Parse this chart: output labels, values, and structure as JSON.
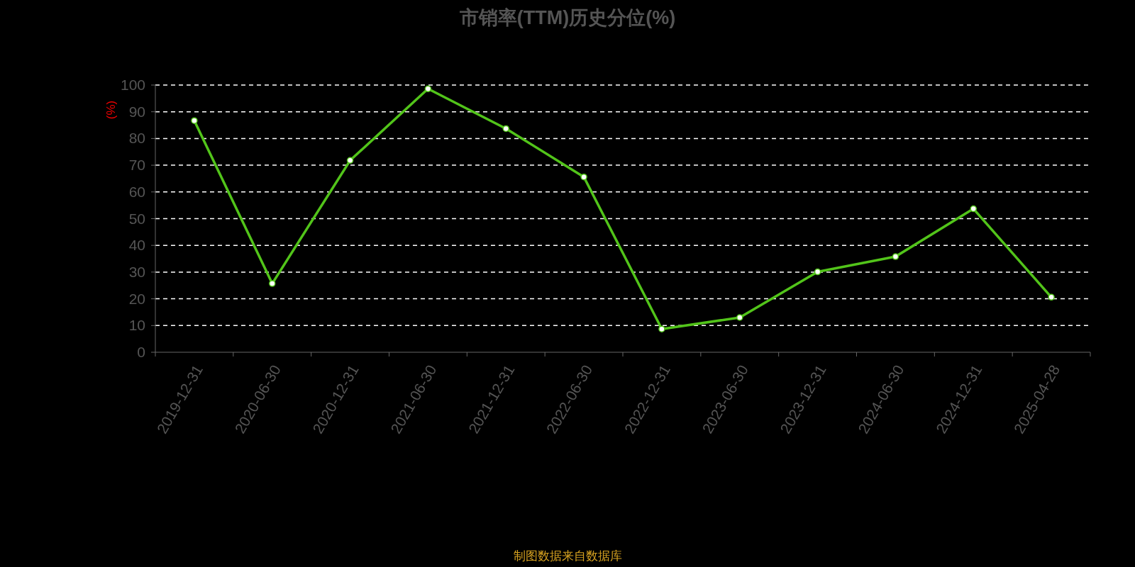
{
  "chart_data": {
    "type": "line",
    "title": "市销率(TTM)历史分位(%)",
    "ylabel": "(%)",
    "categories": [
      "2019-12-31",
      "2020-06-30",
      "2020-12-31",
      "2021-06-30",
      "2021-12-31",
      "2022-06-30",
      "2022-12-31",
      "2023-06-30",
      "2023-12-31",
      "2024-06-30",
      "2024-12-31",
      "2025-04-28"
    ],
    "series": [
      {
        "color": "#52c41a",
        "values": [
          86.7,
          25.7,
          71.8,
          98.6,
          83.7,
          65.6,
          8.7,
          13.0,
          30.1,
          35.8,
          53.7,
          20.6
        ]
      }
    ],
    "ylim": [
      0,
      100
    ],
    "yticks": [
      0,
      10,
      20,
      30,
      40,
      50,
      60,
      70,
      80,
      90,
      100
    ],
    "grid": "y",
    "marker": "circle",
    "line_style": "solid",
    "annotations": [
      "制图数据来自数据库"
    ]
  }
}
